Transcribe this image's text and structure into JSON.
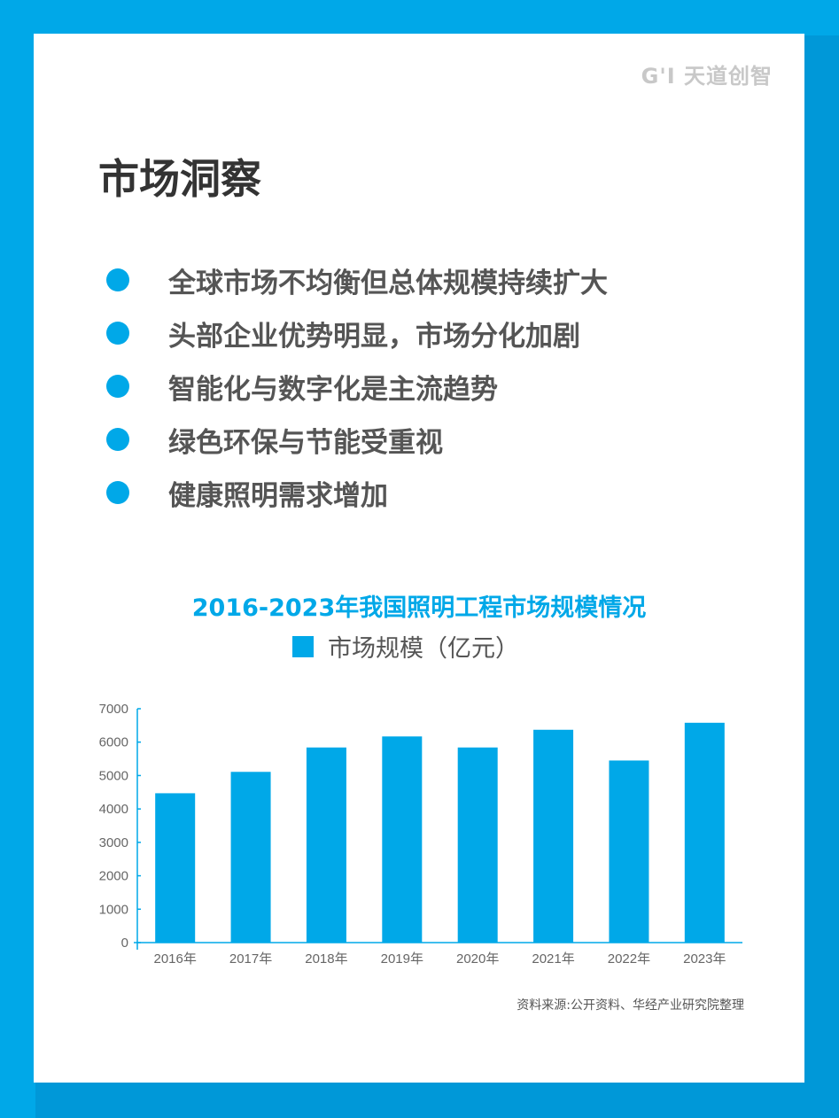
{
  "logo": "G'I 天道创智",
  "page_title": "市场洞察",
  "bullets": [
    "全球市场不均衡但总体规模持续扩大",
    "头部企业优势明显，市场分化加剧",
    "智能化与数字化是主流趋势",
    "绿色环保与节能受重视",
    "健康照明需求增加"
  ],
  "source": "资料来源:公开资料、华经产业研究院整理",
  "colors": {
    "accent": "#00a8e8"
  },
  "chart_data": {
    "type": "bar",
    "title": "2016-2023年我国照明工程市场规模情况",
    "legend": "市场规模（亿元）",
    "legend_position": "top-center",
    "categories": [
      "2016年",
      "2017年",
      "2018年",
      "2019年",
      "2020年",
      "2021年",
      "2022年",
      "2023年"
    ],
    "values": [
      4470,
      5110,
      5840,
      6170,
      5840,
      6370,
      5450,
      6580
    ],
    "yticks": [
      "0",
      "1000",
      "2000",
      "3000",
      "4000",
      "5000",
      "6000",
      "7000"
    ],
    "ylim": [
      0,
      7000
    ],
    "grid": false,
    "xlabel": "",
    "ylabel": ""
  }
}
